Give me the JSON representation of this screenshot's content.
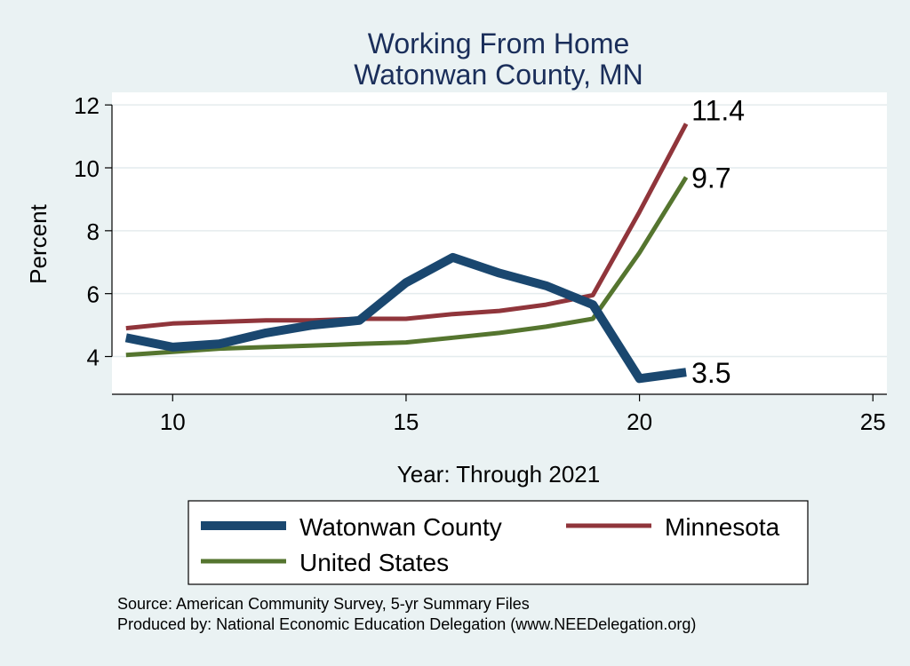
{
  "chart_data": {
    "type": "line",
    "title": "Working From Home",
    "subtitle": "Watonwan County, MN",
    "xlabel": "Year: Through 2021",
    "ylabel": "Percent",
    "xlim": [
      8.7,
      25.3
    ],
    "ylim": [
      2.8,
      12.4
    ],
    "xticks": [
      10,
      15,
      20,
      25
    ],
    "yticks": [
      4,
      6,
      8,
      10,
      12
    ],
    "grid": true,
    "legend_position": "bottom",
    "series": [
      {
        "name": "Watonwan County",
        "color": "#1a476f",
        "x": [
          9,
          10,
          11,
          12,
          13,
          14,
          15,
          16,
          17,
          18,
          19,
          20,
          21
        ],
        "values": [
          4.6,
          4.3,
          4.4,
          4.75,
          5.0,
          5.15,
          6.35,
          7.15,
          6.65,
          6.25,
          5.65,
          3.3,
          3.5
        ],
        "end_label": "3.5"
      },
      {
        "name": "Minnesota",
        "color": "#90353b",
        "x": [
          9,
          10,
          11,
          12,
          13,
          14,
          15,
          16,
          17,
          18,
          19,
          20,
          21
        ],
        "values": [
          4.9,
          5.05,
          5.1,
          5.15,
          5.15,
          5.2,
          5.2,
          5.35,
          5.45,
          5.65,
          5.95,
          8.6,
          11.4
        ],
        "end_label": "11.4"
      },
      {
        "name": "United States",
        "color": "#55752f",
        "x": [
          9,
          10,
          11,
          12,
          13,
          14,
          15,
          16,
          17,
          18,
          19,
          20,
          21
        ],
        "values": [
          4.05,
          4.15,
          4.25,
          4.3,
          4.35,
          4.4,
          4.45,
          4.6,
          4.75,
          4.95,
          5.2,
          7.3,
          9.7
        ],
        "end_label": "9.7"
      }
    ],
    "notes": [
      "Source: American Community Survey, 5-yr Summary Files",
      "Produced by: National Economic Education Delegation (www.NEEDelegation.org)"
    ]
  }
}
